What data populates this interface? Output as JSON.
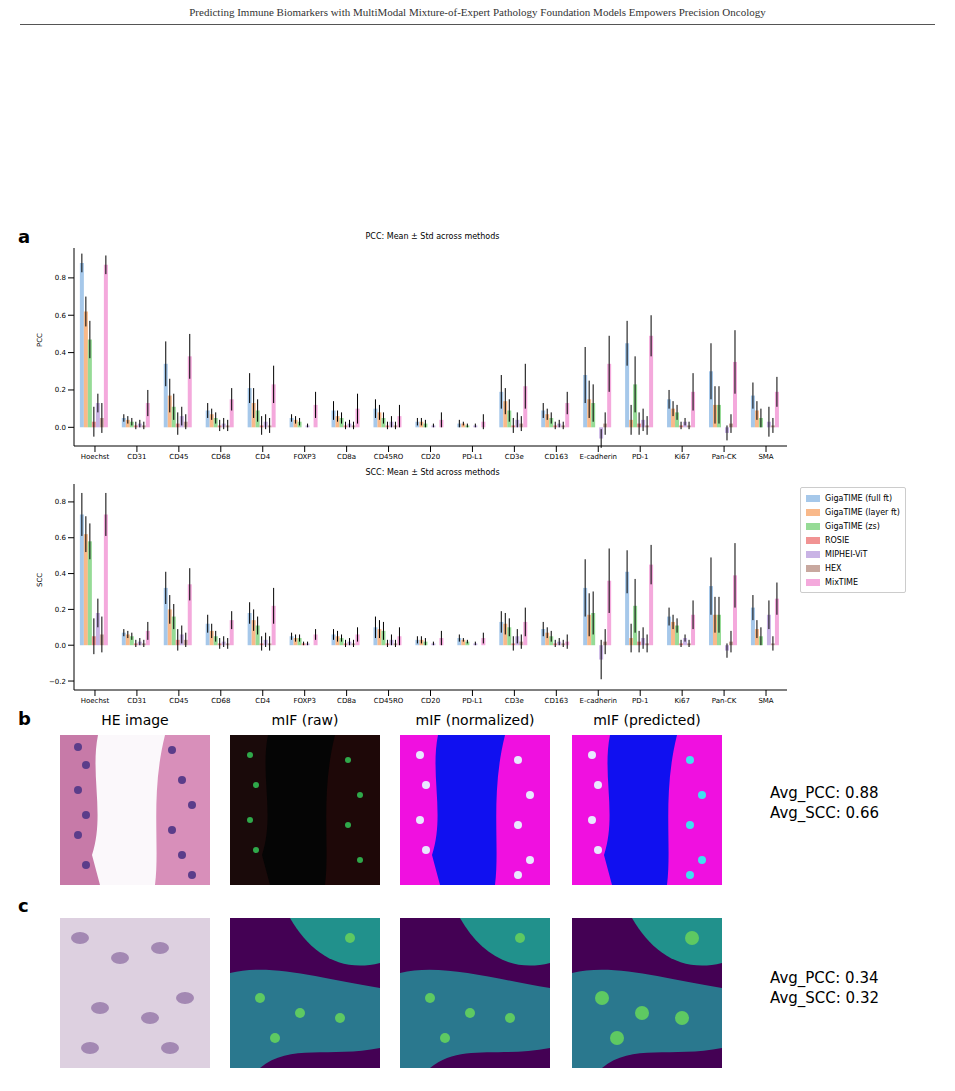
{
  "header": "Predicting Immune Biomarkers with MultiModal Mixture-of-Expert Pathology Foundation Models Empowers Precision Oncology",
  "panel_labels": [
    "a",
    "b",
    "c"
  ],
  "chart_data": [
    {
      "type": "bar",
      "title": "PCC: Mean ± Std across methods",
      "y_label": "PCC",
      "categories": [
        "Hoechst",
        "CD31",
        "CD45",
        "CD68",
        "CD4",
        "FOXP3",
        "CD8a",
        "CD45RO",
        "CD20",
        "PD-L1",
        "CD3e",
        "CD163",
        "E-cadherin",
        "PD-1",
        "Ki67",
        "Pan-CK",
        "SMA"
      ],
      "ylim": [
        -0.1,
        0.96
      ],
      "yticks": [
        {
          "value": 0,
          "label": "0.0"
        },
        {
          "value": 0.2,
          "label": "0.2"
        },
        {
          "value": 0.4,
          "label": "0.4"
        },
        {
          "value": 0.6,
          "label": "0.6"
        },
        {
          "value": 0.8,
          "label": "0.8"
        }
      ],
      "series": [
        {
          "name": "GigaTIME (full ft)",
          "color": "#a6c8ea",
          "values": [
            0.88,
            0.05,
            0.34,
            0.09,
            0.21,
            0.05,
            0.09,
            0.1,
            0.03,
            0.02,
            0.19,
            0.09,
            0.28,
            0.45,
            0.15,
            0.3,
            0.17
          ],
          "errors": [
            0.05,
            0.02,
            0.12,
            0.04,
            0.08,
            0.02,
            0.05,
            0.05,
            0.02,
            0.02,
            0.09,
            0.04,
            0.15,
            0.12,
            0.05,
            0.15,
            0.07
          ]
        },
        {
          "name": "GigaTIME (layer ft)",
          "color": "#f9b98a",
          "values": [
            0.62,
            0.04,
            0.17,
            0.07,
            0.13,
            0.04,
            0.06,
            0.08,
            0.03,
            0.02,
            0.14,
            0.07,
            0.15,
            0.04,
            0.1,
            0.12,
            0.09
          ],
          "errors": [
            0.08,
            0.02,
            0.09,
            0.03,
            0.08,
            0.02,
            0.03,
            0.04,
            0.02,
            0.01,
            0.07,
            0.03,
            0.1,
            0.08,
            0.04,
            0.1,
            0.05
          ]
        },
        {
          "name": "GigaTIME (zs)",
          "color": "#96db96",
          "values": [
            0.47,
            0.03,
            0.11,
            0.05,
            0.09,
            0.03,
            0.05,
            0.05,
            0.02,
            0.01,
            0.09,
            0.05,
            0.13,
            0.23,
            0.08,
            0.12,
            0.05
          ],
          "errors": [
            0.1,
            0.02,
            0.07,
            0.03,
            0.06,
            0.02,
            0.03,
            0.03,
            0.02,
            0.01,
            0.06,
            0.03,
            0.1,
            0.15,
            0.04,
            0.1,
            0.05
          ]
        },
        {
          "name": "ROSIE",
          "color": "#f19393",
          "values": [
            0.03,
            0.01,
            0.02,
            0.01,
            0.01,
            0,
            0.01,
            0.01,
            0,
            0,
            0.01,
            0.01,
            0,
            0.02,
            0.01,
            0,
            0
          ],
          "errors": [
            0.08,
            0.02,
            0.06,
            0.03,
            0.05,
            0.01,
            0.02,
            0.02,
            0.01,
            0.01,
            0.04,
            0.02,
            0.05,
            0.06,
            0.02,
            0.04,
            0.03
          ]
        },
        {
          "name": "MIPHEI-ViT",
          "color": "#c9b3e5",
          "values": [
            0.13,
            0.02,
            0.06,
            0.02,
            0.03,
            0.01,
            0.02,
            0.03,
            0.01,
            0.01,
            0.04,
            0.02,
            -0.06,
            0.04,
            0.03,
            -0.03,
            0.03
          ],
          "errors": [
            0.05,
            0.02,
            0.05,
            0.03,
            0.04,
            0.01,
            0.02,
            0.03,
            0.01,
            0.01,
            0.04,
            0.02,
            0.05,
            0.06,
            0.02,
            0.04,
            0.08
          ]
        },
        {
          "name": "HEX",
          "color": "#c8a89f",
          "values": [
            0.05,
            0.01,
            0.03,
            0.01,
            0.01,
            0,
            0.01,
            0.01,
            0,
            0,
            0.02,
            0.01,
            0.02,
            0.01,
            0.01,
            0.02,
            0.01
          ],
          "errors": [
            0.08,
            0.02,
            0.04,
            0.03,
            0.04,
            0.01,
            0.02,
            0.02,
            0.02,
            0.01,
            0.04,
            0.02,
            0.06,
            0.05,
            0.02,
            0.05,
            0.04
          ]
        },
        {
          "name": "MixTIME",
          "color": "#f4a9dc",
          "values": [
            0.87,
            0.13,
            0.38,
            0.15,
            0.23,
            0.12,
            0.1,
            0.06,
            0.04,
            0.03,
            0.22,
            0.13,
            0.34,
            0.49,
            0.19,
            0.35,
            0.19
          ],
          "errors": [
            0.05,
            0.07,
            0.12,
            0.06,
            0.1,
            0.07,
            0.08,
            0.06,
            0.04,
            0.04,
            0.12,
            0.06,
            0.15,
            0.11,
            0.1,
            0.17,
            0.08
          ]
        }
      ]
    },
    {
      "type": "bar",
      "title": "SCC: Mean ± Std across methods",
      "y_label": "SCC",
      "legend": "right",
      "categories": [
        "Hoechst",
        "CD31",
        "CD45",
        "CD68",
        "CD4",
        "FOXP3",
        "CD8a",
        "CD45RO",
        "CD20",
        "PD-L1",
        "CD3e",
        "CD163",
        "E-cadherin",
        "PD-1",
        "Ki67",
        "Pan-CK",
        "SMA"
      ],
      "ylim": [
        -0.25,
        0.9
      ],
      "yticks": [
        {
          "value": -0.2,
          "label": "−0.2"
        },
        {
          "value": 0,
          "label": "0.0"
        },
        {
          "value": 0.2,
          "label": "0.2"
        },
        {
          "value": 0.4,
          "label": "0.4"
        },
        {
          "value": 0.6,
          "label": "0.6"
        },
        {
          "value": 0.8,
          "label": "0.8"
        }
      ],
      "series": [
        {
          "name": "GigaTIME (full ft)",
          "color": "#a6c8ea",
          "values": [
            0.73,
            0.07,
            0.32,
            0.12,
            0.18,
            0.05,
            0.06,
            0.1,
            0.03,
            0.04,
            0.13,
            0.09,
            0.32,
            0.41,
            0.16,
            0.33,
            0.21
          ],
          "errors": [
            0.12,
            0.02,
            0.09,
            0.05,
            0.06,
            0.02,
            0.03,
            0.06,
            0.02,
            0.02,
            0.06,
            0.04,
            0.16,
            0.12,
            0.05,
            0.16,
            0.07
          ]
        },
        {
          "name": "GigaTIME (layer ft)",
          "color": "#f9b98a",
          "values": [
            0.62,
            0.06,
            0.2,
            0.08,
            0.14,
            0.04,
            0.05,
            0.09,
            0.03,
            0.03,
            0.12,
            0.07,
            0.17,
            0.04,
            0.13,
            0.17,
            0.09
          ],
          "errors": [
            0.1,
            0.02,
            0.08,
            0.04,
            0.06,
            0.02,
            0.03,
            0.05,
            0.02,
            0.01,
            0.06,
            0.03,
            0.12,
            0.08,
            0.04,
            0.1,
            0.05
          ]
        },
        {
          "name": "GigaTIME (zs)",
          "color": "#96db96",
          "values": [
            0.58,
            0.05,
            0.16,
            0.05,
            0.11,
            0.04,
            0.04,
            0.08,
            0.02,
            0.02,
            0.1,
            0.05,
            0.18,
            0.22,
            0.11,
            0.17,
            0.05
          ],
          "errors": [
            0.1,
            0.02,
            0.07,
            0.03,
            0.05,
            0.02,
            0.02,
            0.05,
            0.02,
            0.01,
            0.05,
            0.03,
            0.12,
            0.15,
            0.04,
            0.1,
            0.05
          ]
        },
        {
          "name": "ROSIE",
          "color": "#f19393",
          "values": [
            0.05,
            0.01,
            0.03,
            0.01,
            0.01,
            0.01,
            0.01,
            0.01,
            0,
            0,
            0.01,
            0.01,
            0,
            0.02,
            0.01,
            0,
            0
          ],
          "errors": [
            0.1,
            0.02,
            0.06,
            0.03,
            0.04,
            0.01,
            0.02,
            0.02,
            0.02,
            0.01,
            0.04,
            0.02,
            0.06,
            0.06,
            0.02,
            0.04,
            0.03
          ]
        },
        {
          "name": "MIPHEI-ViT",
          "color": "#c9b3e5",
          "values": [
            0.18,
            0.02,
            0.06,
            0.02,
            0.03,
            0.01,
            0.02,
            0.03,
            0.01,
            0.01,
            0.05,
            0.02,
            -0.08,
            0.04,
            0.04,
            -0.03,
            0.17
          ],
          "errors": [
            0.08,
            0.02,
            0.05,
            0.03,
            0.04,
            0.01,
            0.02,
            0.03,
            0.01,
            0.01,
            0.04,
            0.02,
            0.11,
            0.06,
            0.02,
            0.04,
            0.08
          ]
        },
        {
          "name": "HEX",
          "color": "#c8a89f",
          "values": [
            0.06,
            0.01,
            0.03,
            0.01,
            0.01,
            0,
            0.01,
            0.01,
            0,
            0,
            0.02,
            0.01,
            0.02,
            0.01,
            0.01,
            0.02,
            0.01
          ],
          "errors": [
            0.1,
            0.02,
            0.04,
            0.03,
            0.04,
            0.01,
            0.02,
            0.02,
            0.02,
            0.01,
            0.04,
            0.02,
            0.07,
            0.05,
            0.02,
            0.06,
            0.04
          ]
        },
        {
          "name": "MixTIME",
          "color": "#f4a9dc",
          "values": [
            0.73,
            0.08,
            0.34,
            0.14,
            0.22,
            0.06,
            0.06,
            0.05,
            0.04,
            0.04,
            0.13,
            0.02,
            0.36,
            0.45,
            0.17,
            0.39,
            0.26
          ],
          "errors": [
            0.12,
            0.05,
            0.09,
            0.05,
            0.1,
            0.03,
            0.04,
            0.05,
            0.04,
            0.03,
            0.08,
            0.04,
            0.18,
            0.11,
            0.08,
            0.18,
            0.09
          ]
        }
      ]
    }
  ],
  "panel_b": {
    "column_titles": [
      "HE image",
      "mIF (raw)",
      "mIF (normalized)",
      "mIF (predicted)"
    ],
    "metrics": [
      "Avg_PCC: 0.88",
      "Avg_SCC: 0.66"
    ]
  },
  "panel_c": {
    "metrics": [
      "Avg_PCC: 0.34",
      "Avg_SCC: 0.32"
    ]
  }
}
